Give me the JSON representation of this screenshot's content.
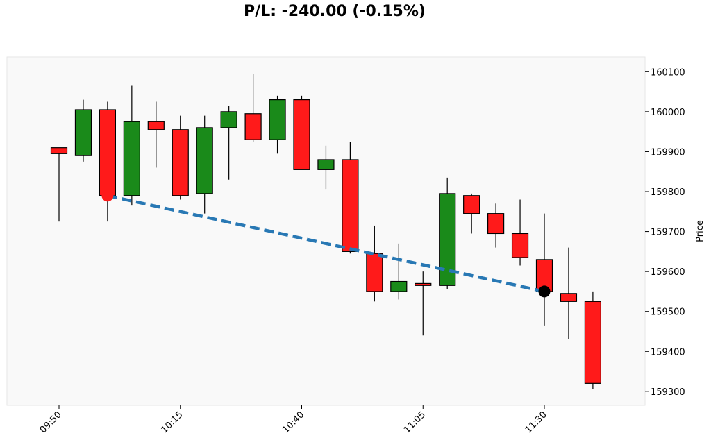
{
  "chart_data": {
    "type": "candlestick",
    "title": "P/L: -240.00 (-0.15%)",
    "ylabel": "Price",
    "xlabel": "",
    "ylim": [
      159265,
      160137
    ],
    "y_ticks": [
      160100,
      160000,
      159900,
      159800,
      159700,
      159600,
      159500,
      159400,
      159300
    ],
    "x_ticks": [
      "09:50",
      "10:15",
      "10:40",
      "11:05",
      "11:30"
    ],
    "x_tick_indices": [
      0,
      5,
      10,
      15,
      20
    ],
    "colors": {
      "up": "#1a8a1a",
      "down": "#ff1a1a",
      "trade_line": "#2878b4",
      "entry_marker": "#ff1a1a",
      "exit_marker": "#000000",
      "plot_bg": "#f9f9f9"
    },
    "candles": [
      {
        "time": "09:50",
        "open": 159910,
        "high": 159910,
        "low": 159725,
        "close": 159895
      },
      {
        "time": "09:55",
        "open": 159890,
        "high": 160030,
        "low": 159875,
        "close": 160005
      },
      {
        "time": "10:00",
        "open": 160005,
        "high": 160025,
        "low": 159725,
        "close": 159790
      },
      {
        "time": "10:05",
        "open": 159790,
        "high": 160065,
        "low": 159765,
        "close": 159975
      },
      {
        "time": "10:10",
        "open": 159975,
        "high": 160025,
        "low": 159860,
        "close": 159955
      },
      {
        "time": "10:15",
        "open": 159955,
        "high": 159990,
        "low": 159780,
        "close": 159790
      },
      {
        "time": "10:20",
        "open": 159795,
        "high": 159990,
        "low": 159745,
        "close": 159960
      },
      {
        "time": "10:25",
        "open": 159960,
        "high": 160015,
        "low": 159830,
        "close": 160000
      },
      {
        "time": "10:30",
        "open": 159995,
        "high": 160095,
        "low": 159925,
        "close": 159930
      },
      {
        "time": "10:35",
        "open": 159930,
        "high": 160040,
        "low": 159895,
        "close": 160030
      },
      {
        "time": "10:40",
        "open": 160030,
        "high": 160040,
        "low": 159855,
        "close": 159855
      },
      {
        "time": "10:45",
        "open": 159855,
        "high": 159915,
        "low": 159805,
        "close": 159880
      },
      {
        "time": "10:50",
        "open": 159880,
        "high": 159925,
        "low": 159645,
        "close": 159650
      },
      {
        "time": "10:55",
        "open": 159645,
        "high": 159715,
        "low": 159525,
        "close": 159550
      },
      {
        "time": "11:00",
        "open": 159550,
        "high": 159670,
        "low": 159530,
        "close": 159575
      },
      {
        "time": "11:05",
        "open": 159570,
        "high": 159600,
        "low": 159440,
        "close": 159565
      },
      {
        "time": "11:10",
        "open": 159565,
        "high": 159835,
        "low": 159555,
        "close": 159795
      },
      {
        "time": "11:15",
        "open": 159790,
        "high": 159795,
        "low": 159695,
        "close": 159745
      },
      {
        "time": "11:20",
        "open": 159745,
        "high": 159770,
        "low": 159660,
        "close": 159695
      },
      {
        "time": "11:25",
        "open": 159695,
        "high": 159780,
        "low": 159615,
        "close": 159635
      },
      {
        "time": "11:30",
        "open": 159630,
        "high": 159745,
        "low": 159465,
        "close": 159550
      },
      {
        "time": "11:35",
        "open": 159545,
        "high": 159660,
        "low": 159430,
        "close": 159525
      },
      {
        "time": "11:40",
        "open": 159525,
        "high": 159550,
        "low": 159305,
        "close": 159320
      }
    ],
    "trade": {
      "entry": {
        "index": 2,
        "price": 159790
      },
      "exit": {
        "index": 20,
        "price": 159550
      }
    }
  }
}
